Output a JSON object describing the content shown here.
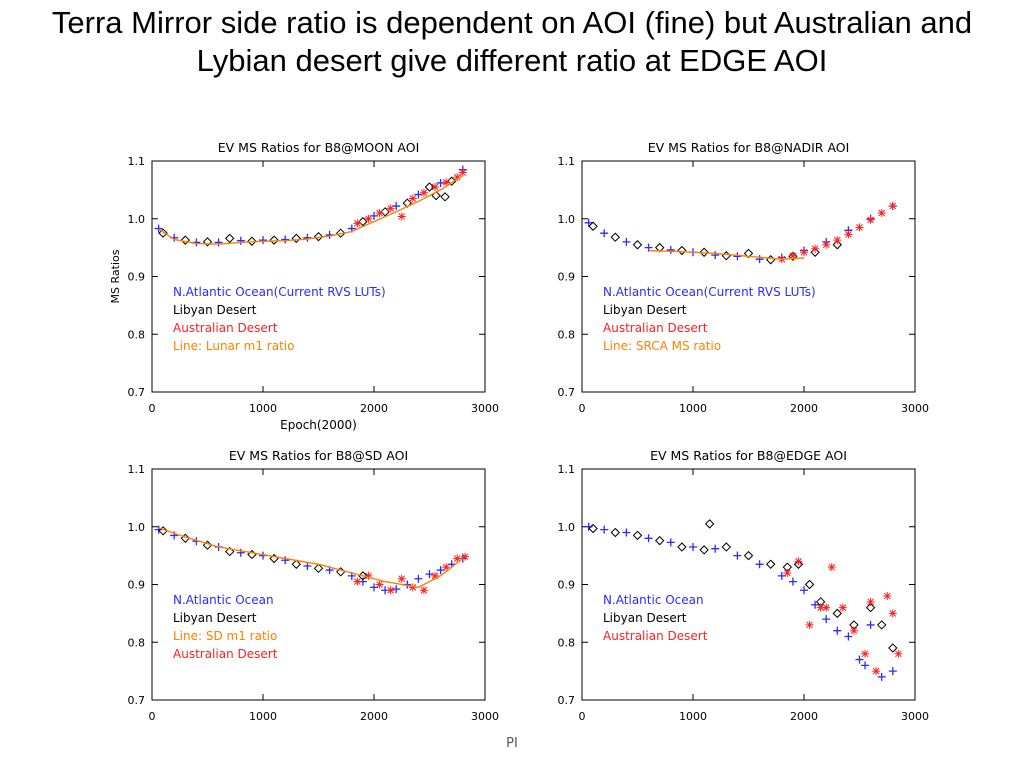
{
  "slide": {
    "title": "Terra Mirror side ratio is dependent on AOI (fine) but Australian and Lybian desert give different ratio at EDGE AOI",
    "footer": "PI"
  },
  "colors": {
    "ocean": "#2b2bff",
    "libyan": "#000000",
    "australian": "#ff2020",
    "line": "#ff8000"
  },
  "chart_data": [
    {
      "type": "scatter",
      "title": "EV MS Ratios for B8@MOON AOI",
      "xlabel": "Epoch(2000)",
      "ylabel": "MS Ratios",
      "xlim": [
        0,
        3000
      ],
      "ylim": [
        0.7,
        1.1
      ],
      "xticks": [
        0,
        1000,
        2000,
        3000
      ],
      "yticks": [
        "0.7",
        "0.8",
        "0.9",
        "1.0",
        "1.1"
      ],
      "legend": [
        "N.Atlantic Ocean(Current RVS LUTs)",
        "Libyan Desert",
        "Australian Desert",
        "Line: Lunar m1 ratio"
      ],
      "legend_colors": [
        "ocean",
        "libyan",
        "australian",
        "line"
      ],
      "series": [
        {
          "name": "N.Atlantic Ocean(Current RVS LUTs)",
          "color": "ocean",
          "marker": "plus",
          "x": [
            60,
            200,
            400,
            600,
            800,
            1000,
            1200,
            1400,
            1600,
            1800,
            2000,
            2200,
            2400,
            2600,
            2800
          ],
          "y": [
            0.983,
            0.967,
            0.959,
            0.959,
            0.962,
            0.963,
            0.964,
            0.967,
            0.972,
            0.983,
            1.005,
            1.022,
            1.042,
            1.062,
            1.085
          ]
        },
        {
          "name": "Libyan Desert",
          "color": "libyan",
          "marker": "diamond",
          "x": [
            100,
            300,
            500,
            700,
            900,
            1100,
            1300,
            1500,
            1700,
            1900,
            2100,
            2300,
            2500,
            2560,
            2640,
            2700
          ],
          "y": [
            0.975,
            0.963,
            0.96,
            0.966,
            0.961,
            0.963,
            0.966,
            0.969,
            0.975,
            0.995,
            1.012,
            1.027,
            1.055,
            1.04,
            1.038,
            1.065
          ]
        },
        {
          "name": "Australian Desert",
          "color": "australian",
          "marker": "star",
          "x": [
            1850,
            1950,
            2050,
            2150,
            2250,
            2350,
            2450,
            2550,
            2650,
            2750,
            2800
          ],
          "y": [
            0.992,
            1.0,
            1.01,
            1.018,
            1.004,
            1.035,
            1.045,
            1.055,
            1.063,
            1.072,
            1.08
          ]
        },
        {
          "name": "Line: Lunar m1 ratio",
          "color": "line",
          "marker": "line",
          "x": [
            60,
            200,
            400,
            600,
            800,
            1000,
            1200,
            1400,
            1600,
            1800,
            2000,
            2200,
            2400,
            2600,
            2800
          ],
          "y": [
            0.982,
            0.964,
            0.957,
            0.956,
            0.959,
            0.961,
            0.962,
            0.965,
            0.97,
            0.978,
            0.995,
            1.012,
            1.03,
            1.05,
            1.075
          ]
        }
      ]
    },
    {
      "type": "scatter",
      "title": "EV MS Ratios for B8@NADIR AOI",
      "xlabel": "",
      "ylabel": "",
      "xlim": [
        0,
        3000
      ],
      "ylim": [
        0.7,
        1.1
      ],
      "xticks": [
        0,
        1000,
        2000,
        3000
      ],
      "yticks": [
        "0.7",
        "0.8",
        "0.9",
        "1.0",
        "1.1"
      ],
      "legend": [
        "N.Atlantic Ocean(Current RVS LUTs)",
        "Libyan Desert",
        "Australian Desert",
        "Line: SRCA MS ratio"
      ],
      "legend_colors": [
        "ocean",
        "libyan",
        "australian",
        "line"
      ],
      "series": [
        {
          "name": "N.Atlantic Ocean(Current RVS LUTs)",
          "color": "ocean",
          "marker": "plus",
          "x": [
            60,
            200,
            400,
            600,
            800,
            1000,
            1200,
            1400,
            1600,
            1800,
            2000,
            2200,
            2400,
            2600,
            2800
          ],
          "y": [
            0.993,
            0.975,
            0.96,
            0.95,
            0.946,
            0.942,
            0.937,
            0.935,
            0.93,
            0.933,
            0.945,
            0.96,
            0.98,
            1.0,
            1.022
          ]
        },
        {
          "name": "Libyan Desert",
          "color": "libyan",
          "marker": "diamond",
          "x": [
            100,
            300,
            500,
            700,
            900,
            1100,
            1300,
            1500,
            1700,
            1900,
            2100,
            2300
          ],
          "y": [
            0.987,
            0.968,
            0.955,
            0.95,
            0.945,
            0.942,
            0.936,
            0.94,
            0.929,
            0.935,
            0.942,
            0.955
          ]
        },
        {
          "name": "Australian Desert",
          "color": "australian",
          "marker": "star",
          "x": [
            1800,
            1900,
            2000,
            2100,
            2200,
            2300,
            2400,
            2500,
            2600,
            2700,
            2800
          ],
          "y": [
            0.93,
            0.936,
            0.942,
            0.948,
            0.955,
            0.963,
            0.973,
            0.985,
            0.998,
            1.01,
            1.022
          ]
        },
        {
          "name": "Line: SRCA MS ratio",
          "color": "line",
          "marker": "line",
          "x": [
            600,
            900,
            1200,
            1500,
            1800,
            2000
          ],
          "y": [
            0.945,
            0.943,
            0.94,
            0.935,
            0.93,
            0.932
          ]
        }
      ]
    },
    {
      "type": "scatter",
      "title": "EV MS Ratios for B8@SD AOI",
      "xlabel": "",
      "ylabel": "",
      "xlim": [
        0,
        3000
      ],
      "ylim": [
        0.7,
        1.1
      ],
      "xticks": [
        0,
        1000,
        2000,
        3000
      ],
      "yticks": [
        "0.7",
        "0.8",
        "0.9",
        "1.0",
        "1.1"
      ],
      "legend": [
        "N.Atlantic Ocean",
        "Libyan Desert",
        "Line: SD m1 ratio",
        "Australian Desert"
      ],
      "legend_colors": [
        "ocean",
        "libyan",
        "line",
        "australian"
      ],
      "series": [
        {
          "name": "N.Atlantic Ocean",
          "color": "ocean",
          "marker": "plus",
          "x": [
            60,
            200,
            400,
            600,
            800,
            1000,
            1200,
            1400,
            1600,
            1800,
            1900,
            2000,
            2100,
            2200,
            2300,
            2400,
            2500,
            2600,
            2700,
            2800
          ],
          "y": [
            0.995,
            0.985,
            0.975,
            0.965,
            0.955,
            0.95,
            0.942,
            0.932,
            0.925,
            0.915,
            0.905,
            0.895,
            0.89,
            0.892,
            0.9,
            0.91,
            0.918,
            0.925,
            0.935,
            0.945
          ]
        },
        {
          "name": "Libyan Desert",
          "color": "libyan",
          "marker": "diamond",
          "x": [
            100,
            300,
            500,
            700,
            900,
            1100,
            1300,
            1500,
            1700,
            1900
          ],
          "y": [
            0.993,
            0.98,
            0.968,
            0.957,
            0.952,
            0.945,
            0.935,
            0.928,
            0.922,
            0.915
          ]
        },
        {
          "name": "Australian Desert",
          "color": "australian",
          "marker": "star",
          "x": [
            1850,
            1950,
            2050,
            2150,
            2250,
            2350,
            2450,
            2550,
            2650,
            2750,
            2820
          ],
          "y": [
            0.905,
            0.915,
            0.9,
            0.89,
            0.91,
            0.895,
            0.89,
            0.915,
            0.93,
            0.945,
            0.948
          ]
        },
        {
          "name": "Line: SD m1 ratio",
          "color": "line",
          "marker": "line",
          "x": [
            60,
            300,
            600,
            900,
            1200,
            1500,
            1800,
            2100,
            2400,
            2600,
            2800
          ],
          "y": [
            0.998,
            0.982,
            0.965,
            0.955,
            0.945,
            0.935,
            0.92,
            0.905,
            0.895,
            0.915,
            0.945
          ]
        }
      ]
    },
    {
      "type": "scatter",
      "title": "EV MS Ratios for B8@EDGE AOI",
      "xlabel": "",
      "ylabel": "",
      "xlim": [
        0,
        3000
      ],
      "ylim": [
        0.7,
        1.1
      ],
      "xticks": [
        0,
        1000,
        2000,
        3000
      ],
      "yticks": [
        "0.7",
        "0.8",
        "0.9",
        "1.0",
        "1.1"
      ],
      "legend": [
        "N.Atlantic Ocean",
        "Libyan Desert",
        "Australian Desert"
      ],
      "legend_colors": [
        "ocean",
        "libyan",
        "australian"
      ],
      "series": [
        {
          "name": "N.Atlantic Ocean",
          "color": "ocean",
          "marker": "plus",
          "x": [
            60,
            200,
            400,
            600,
            800,
            1000,
            1200,
            1400,
            1600,
            1800,
            1900,
            2000,
            2100,
            2200,
            2300,
            2400,
            2500,
            2550,
            2600,
            2700,
            2800
          ],
          "y": [
            1.0,
            0.995,
            0.99,
            0.98,
            0.973,
            0.965,
            0.962,
            0.95,
            0.935,
            0.915,
            0.905,
            0.89,
            0.865,
            0.84,
            0.82,
            0.81,
            0.77,
            0.76,
            0.83,
            0.74,
            0.75
          ]
        },
        {
          "name": "Libyan Desert",
          "color": "libyan",
          "marker": "diamond",
          "x": [
            100,
            300,
            500,
            700,
            900,
            1100,
            1150,
            1300,
            1500,
            1700,
            1850,
            1950,
            2050,
            2150,
            2300,
            2450,
            2600,
            2700,
            2800
          ],
          "y": [
            0.997,
            0.99,
            0.985,
            0.976,
            0.965,
            0.96,
            1.005,
            0.965,
            0.95,
            0.935,
            0.93,
            0.935,
            0.9,
            0.87,
            0.85,
            0.83,
            0.86,
            0.83,
            0.79
          ]
        },
        {
          "name": "Australian Desert",
          "color": "australian",
          "marker": "star",
          "x": [
            1850,
            1950,
            2050,
            2150,
            2200,
            2250,
            2350,
            2450,
            2550,
            2600,
            2650,
            2750,
            2800,
            2850
          ],
          "y": [
            0.92,
            0.94,
            0.83,
            0.86,
            0.86,
            0.93,
            0.86,
            0.82,
            0.78,
            0.87,
            0.75,
            0.88,
            0.85,
            0.78
          ]
        }
      ]
    }
  ]
}
